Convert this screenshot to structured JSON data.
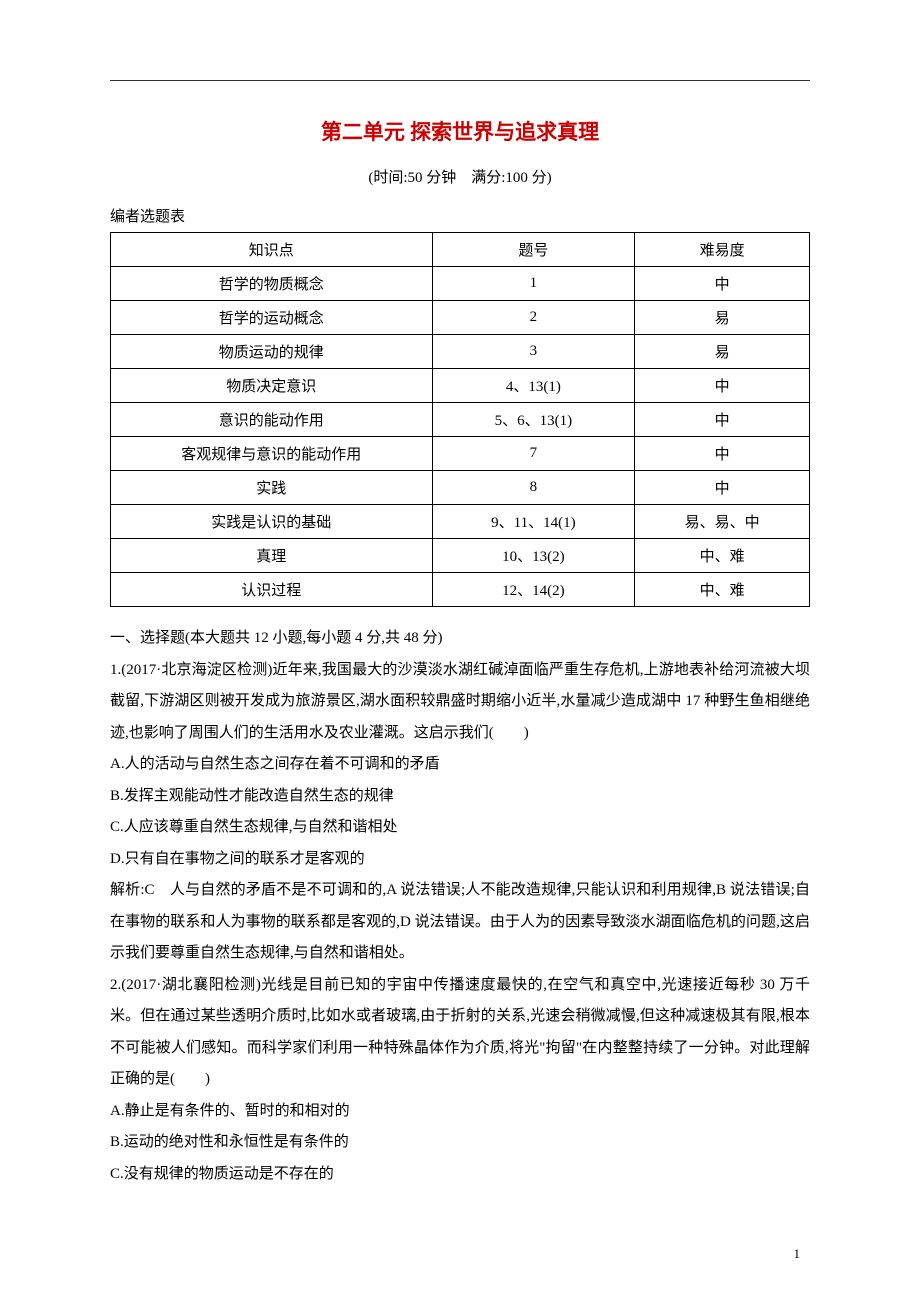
{
  "title": {
    "text": "第二单元 探索世界与追求真理",
    "color": "#cc0000"
  },
  "subtitle": "(时间:50 分钟　满分:100 分)",
  "table_label": "编者选题表",
  "table": {
    "headers": [
      "知识点",
      "题号",
      "难易度"
    ],
    "rows": [
      [
        "哲学的物质概念",
        "1",
        "中"
      ],
      [
        "哲学的运动概念",
        "2",
        "易"
      ],
      [
        "物质运动的规律",
        "3",
        "易"
      ],
      [
        "物质决定意识",
        "4、13(1)",
        "中"
      ],
      [
        "意识的能动作用",
        "5、6、13(1)",
        "中"
      ],
      [
        "客观规律与意识的能动作用",
        "7",
        "中"
      ],
      [
        "实践",
        "8",
        "中"
      ],
      [
        "实践是认识的基础",
        "9、11、14(1)",
        "易、易、中"
      ],
      [
        "真理",
        "10、13(2)",
        "中、难"
      ],
      [
        "认识过程",
        "12、14(2)",
        "中、难"
      ]
    ]
  },
  "section_intro": "一、选择题(本大题共 12 小题,每小题 4 分,共 48 分)",
  "q1": {
    "stem": "1.(2017·北京海淀区检测)近年来,我国最大的沙漠淡水湖红碱淖面临严重生存危机,上游地表补给河流被大坝截留,下游湖区则被开发成为旅游景区,湖水面积较鼎盛时期缩小近半,水量减少造成湖中 17 种野生鱼相继绝迹,也影响了周围人们的生活用水及农业灌溉。这启示我们(　　)",
    "opt_a": "A.人的活动与自然生态之间存在着不可调和的矛盾",
    "opt_b": "B.发挥主观能动性才能改造自然生态的规律",
    "opt_c": "C.人应该尊重自然生态规律,与自然和谐相处",
    "opt_d": "D.只有自在事物之间的联系才是客观的",
    "explain": "解析:C　人与自然的矛盾不是不可调和的,A 说法错误;人不能改造规律,只能认识和利用规律,B 说法错误;自在事物的联系和人为事物的联系都是客观的,D 说法错误。由于人为的因素导致淡水湖面临危机的问题,这启示我们要尊重自然生态规律,与自然和谐相处。"
  },
  "q2": {
    "stem": "2.(2017·湖北襄阳检测)光线是目前已知的宇宙中传播速度最快的,在空气和真空中,光速接近每秒 30 万千米。但在通过某些透明介质时,比如水或者玻璃,由于折射的关系,光速会稍微减慢,但这种减速极其有限,根本不可能被人们感知。而科学家们利用一种特殊晶体作为介质,将光\"拘留\"在内整整持续了一分钟。对此理解正确的是(　　)",
    "opt_a": "A.静止是有条件的、暂时的和相对的",
    "opt_b": "B.运动的绝对性和永恒性是有条件的",
    "opt_c": "C.没有规律的物质运动是不存在的"
  },
  "page_number": "1"
}
